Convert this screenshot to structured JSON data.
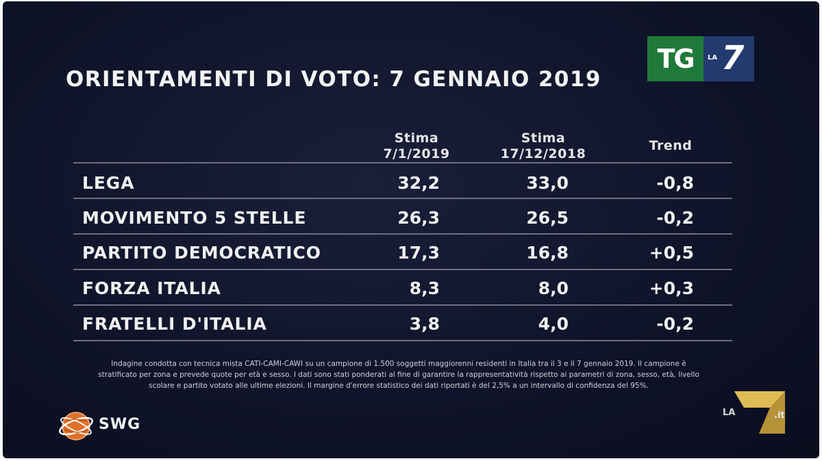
{
  "title": "ORIENTAMENTI DI VOTO: 7 GENNAIO 2019",
  "logo": {
    "tg": "TG",
    "la": "LA",
    "seven": "7"
  },
  "table": {
    "headers": {
      "col1_line1": "Stima",
      "col1_line2": "7/1/2019",
      "col2_line1": "Stima",
      "col2_line2": "17/12/2018",
      "col3": "Trend"
    },
    "rows": [
      {
        "party": "LEGA",
        "stima_2019": "32,2",
        "stima_2018": "33,0",
        "trend": "-0,8"
      },
      {
        "party": "MOVIMENTO 5 STELLE",
        "stima_2019": "26,3",
        "stima_2018": "26,5",
        "trend": "-0,2"
      },
      {
        "party": "PARTITO DEMOCRATICO",
        "stima_2019": "17,3",
        "stima_2018": "16,8",
        "trend": "+0,5"
      },
      {
        "party": "FORZA ITALIA",
        "stima_2019": "8,3",
        "stima_2018": "8,0",
        "trend": "+0,3"
      },
      {
        "party": "FRATELLI D'ITALIA",
        "stima_2019": "3,8",
        "stima_2018": "4,0",
        "trend": "-0,2"
      }
    ]
  },
  "footnote": {
    "line1": "Indagine condotta con tecnica mista CATI-CAMI-CAWI su un campione di 1.500 soggetti maggiorenni residenti in Italia tra il 3 e il 7 gennaio 2019. Il campione è",
    "line2": "stratificato per zona e prevede quote per età e sesso. I dati sono stati ponderati al fine di garantire la rappresentatività rispetto ai parametri di zona, sesso, età, livello",
    "line3": "scolare e partito votato alle ultime elezioni. Il margine d'errore statistico dei dati riportati è del 2,5% a un intervallo di confidenza del 95%."
  },
  "swg": {
    "label": "SWG"
  },
  "watermark": {
    "la": "LA",
    "it": ".it"
  },
  "colors": {
    "background": "#10142a",
    "tg_green": "#1f7a3a",
    "la7_blue": "#233a6e",
    "watermark_gold": "#c9a23a",
    "swg_orange": "#e0702a"
  }
}
